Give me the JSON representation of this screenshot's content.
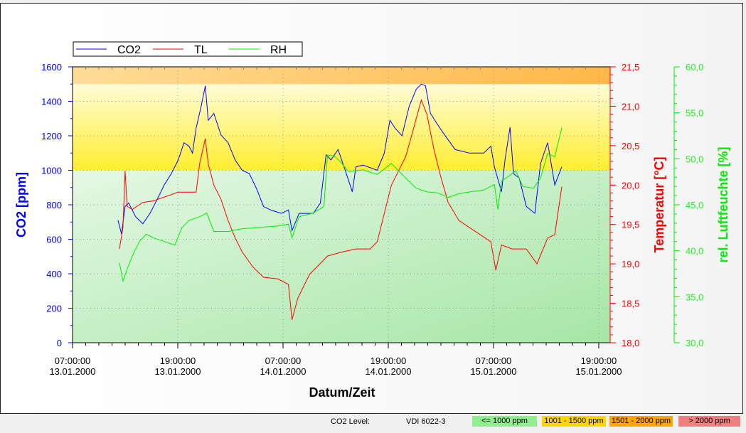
{
  "chart_data": {
    "type": "line",
    "title": "",
    "xlabel": "Datum/Zeit",
    "x_unit": "hours since 07:00 13.01.2000",
    "xlim": [
      0,
      61.3
    ],
    "x_ticks": [
      {
        "h": 0,
        "time": "07:00:00",
        "date": "13.01.2000"
      },
      {
        "h": 12,
        "time": "19:00:00",
        "date": "13.01.2000"
      },
      {
        "h": 24,
        "time": "07:00:00",
        "date": "14.01.2000"
      },
      {
        "h": 36,
        "time": "19:00:00",
        "date": "14.01.2000"
      },
      {
        "h": 48,
        "time": "07:00:00",
        "date": "15.01.2000"
      },
      {
        "h": 60,
        "time": "19:00:00",
        "date": "15.01.2000"
      }
    ],
    "axes": {
      "co2": {
        "label": "CO2 [ppm]",
        "range": [
          0,
          1600
        ],
        "ticks": [
          "0",
          "200",
          "400",
          "600",
          "800",
          "1000",
          "1200",
          "1400",
          "1600"
        ],
        "color": "#0000ff"
      },
      "temp": {
        "label": "Temperatur [°C]",
        "range": [
          18.0,
          21.5
        ],
        "ticks": [
          "18,0",
          "18,5",
          "19,0",
          "19,5",
          "20,0",
          "20,5",
          "21,0",
          "21,5"
        ],
        "color": "#ff0000"
      },
      "rh": {
        "label": "rel. Luftfeuchte [%]",
        "range": [
          30,
          60
        ],
        "ticks": [
          "30,0",
          "35,0",
          "40,0",
          "45,0",
          "50,0",
          "55,0",
          "60,0"
        ],
        "color": "#00ee00"
      }
    },
    "bands": [
      {
        "from": 0,
        "to": 1000,
        "color": "#b4ecb4"
      },
      {
        "from": 1000,
        "to": 1500,
        "color": "#ffef40"
      },
      {
        "from": 1500,
        "to": 1600,
        "color": "#ffc050"
      }
    ],
    "legend": {
      "placement": "top-left"
    },
    "series": [
      {
        "name": "CO2",
        "axis": "co2",
        "color": "#0000ff",
        "points": [
          [
            5.18,
            710
          ],
          [
            5.59,
            630
          ],
          [
            5.99,
            790
          ],
          [
            6.4,
            810
          ],
          [
            7.21,
            730
          ],
          [
            8.02,
            690
          ],
          [
            8.83,
            750
          ],
          [
            9.64,
            830
          ],
          [
            10.45,
            915
          ],
          [
            11.26,
            980
          ],
          [
            12.06,
            1060
          ],
          [
            12.71,
            1160
          ],
          [
            13.28,
            1140
          ],
          [
            13.68,
            1100
          ],
          [
            14.09,
            1245
          ],
          [
            14.66,
            1370
          ],
          [
            15.14,
            1490
          ],
          [
            15.47,
            1290
          ],
          [
            16.11,
            1330
          ],
          [
            16.92,
            1205
          ],
          [
            17.73,
            1160
          ],
          [
            18.54,
            1060
          ],
          [
            19.35,
            1000
          ],
          [
            20.16,
            980
          ],
          [
            20.97,
            895
          ],
          [
            21.78,
            790
          ],
          [
            22.59,
            770
          ],
          [
            23.81,
            750
          ],
          [
            24.62,
            770
          ],
          [
            25.02,
            650
          ],
          [
            25.83,
            750
          ],
          [
            27.45,
            750
          ],
          [
            28.26,
            810
          ],
          [
            28.91,
            1090
          ],
          [
            29.47,
            1060
          ],
          [
            30.28,
            1120
          ],
          [
            31.09,
            1000
          ],
          [
            31.9,
            875
          ],
          [
            32.31,
            1020
          ],
          [
            33.12,
            1030
          ],
          [
            34.74,
            1000
          ],
          [
            35.55,
            1100
          ],
          [
            36.19,
            1290
          ],
          [
            36.76,
            1245
          ],
          [
            37.57,
            1200
          ],
          [
            38.38,
            1370
          ],
          [
            39.19,
            1470
          ],
          [
            39.76,
            1500
          ],
          [
            40.24,
            1490
          ],
          [
            40.81,
            1330
          ],
          [
            41.62,
            1265
          ],
          [
            42.43,
            1205
          ],
          [
            43.64,
            1120
          ],
          [
            45.26,
            1100
          ],
          [
            46.88,
            1100
          ],
          [
            47.69,
            1140
          ],
          [
            48.1,
            1020
          ],
          [
            48.91,
            875
          ],
          [
            49.31,
            1060
          ],
          [
            49.88,
            1250
          ],
          [
            50.28,
            980
          ],
          [
            50.93,
            955
          ],
          [
            51.74,
            790
          ],
          [
            52.71,
            750
          ],
          [
            53.36,
            1040
          ],
          [
            54.17,
            1160
          ],
          [
            54.98,
            915
          ],
          [
            55.79,
            1020
          ]
        ]
      },
      {
        "name": "TL",
        "axis": "temp",
        "color": "#ff0000",
        "points": [
          [
            5.34,
            19.19
          ],
          [
            5.75,
            19.46
          ],
          [
            5.99,
            20.18
          ],
          [
            6.23,
            19.73
          ],
          [
            6.8,
            19.69
          ],
          [
            8.02,
            19.78
          ],
          [
            9.23,
            19.8
          ],
          [
            12.06,
            19.91
          ],
          [
            14.09,
            19.91
          ],
          [
            14.49,
            20.27
          ],
          [
            15.14,
            20.59
          ],
          [
            15.47,
            20.27
          ],
          [
            16.11,
            20.0
          ],
          [
            16.92,
            19.82
          ],
          [
            17.73,
            19.55
          ],
          [
            18.54,
            19.33
          ],
          [
            19.35,
            19.15
          ],
          [
            20.57,
            18.96
          ],
          [
            21.78,
            18.83
          ],
          [
            23.4,
            18.81
          ],
          [
            24.62,
            18.74
          ],
          [
            25.02,
            18.29
          ],
          [
            25.67,
            18.56
          ],
          [
            26.23,
            18.69
          ],
          [
            27.04,
            18.87
          ],
          [
            27.85,
            18.96
          ],
          [
            29.07,
            19.1
          ],
          [
            30.69,
            19.15
          ],
          [
            32.31,
            19.19
          ],
          [
            33.93,
            19.19
          ],
          [
            34.74,
            19.28
          ],
          [
            35.55,
            19.64
          ],
          [
            36.36,
            20.0
          ],
          [
            37.17,
            20.18
          ],
          [
            37.98,
            20.36
          ],
          [
            38.79,
            20.68
          ],
          [
            39.76,
            21.08
          ],
          [
            40.4,
            20.9
          ],
          [
            41.21,
            20.45
          ],
          [
            42.02,
            20.09
          ],
          [
            42.83,
            19.78
          ],
          [
            44.05,
            19.55
          ],
          [
            45.26,
            19.46
          ],
          [
            46.48,
            19.37
          ],
          [
            47.69,
            19.28
          ],
          [
            48.26,
            18.92
          ],
          [
            48.91,
            19.24
          ],
          [
            50.12,
            19.19
          ],
          [
            51.74,
            19.19
          ],
          [
            52.96,
            19.0
          ],
          [
            54.17,
            19.33
          ],
          [
            54.98,
            19.37
          ],
          [
            55.79,
            19.98
          ]
        ]
      },
      {
        "name": "RH",
        "axis": "rh",
        "color": "#00ee00",
        "points": [
          [
            5.34,
            38.7
          ],
          [
            5.75,
            36.7
          ],
          [
            6.23,
            38.0
          ],
          [
            6.8,
            39.4
          ],
          [
            7.61,
            41.0
          ],
          [
            8.42,
            41.8
          ],
          [
            9.23,
            41.4
          ],
          [
            10.45,
            41.0
          ],
          [
            11.66,
            40.6
          ],
          [
            12.47,
            42.5
          ],
          [
            13.28,
            43.3
          ],
          [
            14.49,
            43.7
          ],
          [
            15.3,
            44.1
          ],
          [
            16.11,
            42.1
          ],
          [
            17.73,
            42.1
          ],
          [
            19.35,
            42.4
          ],
          [
            20.97,
            42.5
          ],
          [
            23.4,
            42.7
          ],
          [
            24.62,
            42.9
          ],
          [
            25.02,
            41.4
          ],
          [
            25.83,
            43.7
          ],
          [
            27.45,
            44.1
          ],
          [
            28.66,
            44.8
          ],
          [
            29.07,
            50.4
          ],
          [
            29.88,
            50.3
          ],
          [
            30.69,
            49.5
          ],
          [
            31.5,
            48.6
          ],
          [
            32.31,
            48.7
          ],
          [
            33.12,
            48.8
          ],
          [
            34.74,
            48.3
          ],
          [
            36.36,
            49.5
          ],
          [
            37.17,
            48.7
          ],
          [
            37.98,
            47.9
          ],
          [
            39.19,
            46.8
          ],
          [
            40.4,
            46.4
          ],
          [
            41.62,
            46.3
          ],
          [
            42.83,
            45.8
          ],
          [
            44.05,
            46.2
          ],
          [
            45.26,
            46.4
          ],
          [
            46.88,
            46.6
          ],
          [
            48.1,
            47.2
          ],
          [
            48.5,
            44.5
          ],
          [
            48.91,
            47.6
          ],
          [
            49.72,
            48.1
          ],
          [
            50.53,
            48.7
          ],
          [
            51.34,
            47.0
          ],
          [
            52.55,
            46.8
          ],
          [
            53.36,
            47.9
          ],
          [
            54.17,
            50.6
          ],
          [
            54.98,
            50.2
          ],
          [
            55.79,
            53.4
          ]
        ]
      }
    ]
  },
  "status": {
    "label": "CO2 Level:",
    "standard": "VDI 6022-3",
    "levels": [
      {
        "label": "<= 1000 ppm",
        "color": "#90ee90"
      },
      {
        "label": "1001 - 1500 ppm",
        "color": "#ffd700"
      },
      {
        "label": "1501 - 2000 ppm",
        "color": "#ffa500"
      },
      {
        "label": "> 2000 ppm",
        "color": "#f08080"
      }
    ]
  }
}
